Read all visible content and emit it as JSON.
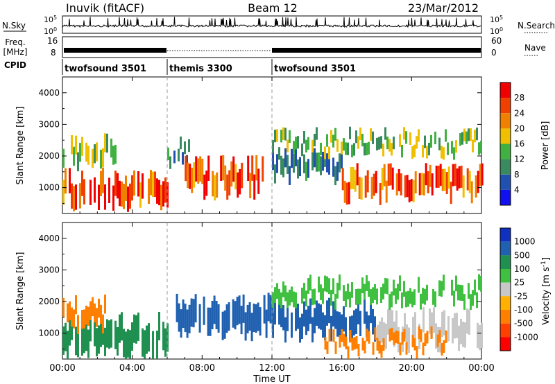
{
  "header": {
    "station": "Inuvik (fitACF)",
    "beam": "Beam 12",
    "date": "23/Mar/2012"
  },
  "panel_labels": {
    "nsky": "N.Sky",
    "nsearch": "N.Search",
    "freq_line1": "Freq.",
    "freq_line2": "[MHz]",
    "nave": "Nave",
    "cpid": "CPID"
  },
  "summary_ticks": {
    "nsky_left": [
      "10^5",
      "10^0"
    ],
    "nsky_right": [
      "10^5",
      "10^0"
    ],
    "freq_left": [
      "16",
      "8"
    ],
    "nave_right": [
      "60",
      "0"
    ]
  },
  "cpid_segments": [
    {
      "label": "twofsound 3501",
      "start_h": 0,
      "end_h": 6
    },
    {
      "label": "themis 3300",
      "start_h": 6,
      "end_h": 12
    },
    {
      "label": "twofsound 3501",
      "start_h": 12,
      "end_h": 24
    }
  ],
  "colors": {
    "power_scale": [
      "#1010f0",
      "#2050b0",
      "#3a8a60",
      "#40b040",
      "#f0c000",
      "#f08000",
      "#f04000",
      "#f00000"
    ],
    "velocity_scale": [
      "#ff0000",
      "#ff4000",
      "#ff8000",
      "#ffb000",
      "#c8c8c8",
      "#40c040",
      "#209050",
      "#2060b0",
      "#1030c0"
    ]
  },
  "chart_data": [
    {
      "type": "heatmap",
      "panel": "power",
      "xlabel": "Time UT",
      "ylabel": "Slant Range [km]",
      "xlim_hours": [
        0,
        24
      ],
      "ylim": [
        180,
        4500
      ],
      "xticks": [
        "00:00",
        "04:00",
        "08:00",
        "12:00",
        "16:00",
        "20:00",
        "00:00"
      ],
      "yticks": [
        1000,
        2000,
        3000,
        4000
      ],
      "colorbar": {
        "label": "Power [dB]",
        "ticks": [
          4,
          8,
          12,
          16,
          20,
          24,
          28
        ],
        "range": [
          0,
          32
        ]
      },
      "features": [
        {
          "start_h": 0.0,
          "end_h": 6.0,
          "range_center": 900,
          "range_width": 800,
          "value": 27
        },
        {
          "start_h": 0.0,
          "end_h": 3.0,
          "range_center": 2100,
          "range_width": 600,
          "value": 14
        },
        {
          "start_h": 6.0,
          "end_h": 7.5,
          "range_center": 2100,
          "range_width": 400,
          "value": 10
        },
        {
          "start_h": 7.0,
          "end_h": 11.5,
          "range_center": 1300,
          "range_width": 800,
          "value": 27
        },
        {
          "start_h": 12.0,
          "end_h": 16.0,
          "range_center": 1700,
          "range_width": 600,
          "value": 8
        },
        {
          "start_h": 12.0,
          "end_h": 24.0,
          "range_center": 2400,
          "range_width": 400,
          "value": 14
        },
        {
          "start_h": 16.0,
          "end_h": 24.0,
          "range_center": 1100,
          "range_width": 700,
          "value": 26
        }
      ]
    },
    {
      "type": "heatmap",
      "panel": "velocity",
      "xlabel": "Time UT",
      "ylabel": "Slant Range [km]",
      "xlim_hours": [
        0,
        24
      ],
      "ylim": [
        180,
        4500
      ],
      "xticks": [
        "00:00",
        "04:00",
        "08:00",
        "12:00",
        "16:00",
        "20:00",
        "00:00"
      ],
      "yticks": [
        1000,
        2000,
        3000,
        4000
      ],
      "colorbar": {
        "label": "Velocity [m s^-1]",
        "ticks": [
          1000,
          500,
          100,
          25,
          -25,
          -100,
          -500,
          -1000
        ]
      },
      "features": [
        {
          "start_h": 0.0,
          "end_h": 6.0,
          "range_center": 900,
          "range_width": 900,
          "value": 150
        },
        {
          "start_h": 0.0,
          "end_h": 2.5,
          "range_center": 1600,
          "range_width": 600,
          "value": -300
        },
        {
          "start_h": 6.5,
          "end_h": 12.0,
          "range_center": 1500,
          "range_width": 900,
          "value": 700
        },
        {
          "start_h": 12.0,
          "end_h": 18.0,
          "range_center": 1400,
          "range_width": 800,
          "value": 800
        },
        {
          "start_h": 18.0,
          "end_h": 24.0,
          "range_center": 1100,
          "range_width": 800,
          "value": 0
        },
        {
          "start_h": 12.0,
          "end_h": 24.0,
          "range_center": 2300,
          "range_width": 500,
          "value": 60
        },
        {
          "start_h": 15.0,
          "end_h": 22.0,
          "range_center": 700,
          "range_width": 400,
          "value": -300
        }
      ]
    }
  ]
}
